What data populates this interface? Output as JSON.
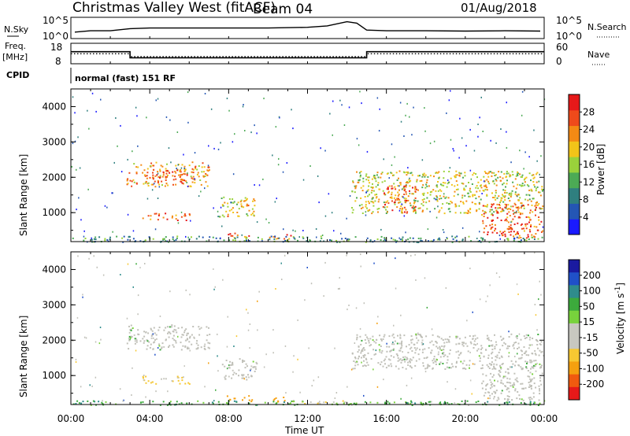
{
  "header": {
    "title": "Christmas Valley West (fitACF)",
    "beam": "Beam 04",
    "date": "01/Aug/2018"
  },
  "panels": {
    "nsky": {
      "label": "N.Sky",
      "tick_top": "10^5",
      "tick_bottom": "10^0",
      "right_label": "N.Search",
      "right_tick_top": "10^5",
      "right_tick_bottom": "10^0"
    },
    "freq": {
      "label_line1": "Freq.",
      "label_line2": "[MHz]",
      "tick_top": "18",
      "tick_bottom": "8",
      "right_label": "Nave",
      "right_tick_top": "60",
      "right_tick_bottom": "0"
    },
    "cpid": {
      "label": "CPID",
      "program": "normal (fast) 151 RF"
    }
  },
  "colors": {
    "power_scale": [
      "#1a1aff",
      "#2456b4",
      "#2f7f7f",
      "#4caa55",
      "#9ad23b",
      "#f2c419",
      "#f48a14",
      "#ef4a1b",
      "#e61919"
    ],
    "velocity_scale": [
      "#e61919",
      "#f05a0f",
      "#f5a00f",
      "#f7c832",
      "#c8c8c0",
      "#c8c8c0",
      "#78d23c",
      "#3caa3c",
      "#2f8c8c",
      "#2050c8",
      "#1a1aa0"
    ],
    "ground_scatter": "#c0c0b8"
  },
  "chart_data": {
    "type": "heatmap",
    "x_axis": {
      "label": "Time UT",
      "range_hours": [
        0,
        24
      ],
      "tick_labels": [
        "00:00",
        "04:00",
        "08:00",
        "12:00",
        "16:00",
        "20:00",
        "00:00"
      ]
    },
    "y_axis": {
      "label": "Slant Range [km]",
      "range_km": [
        180,
        4500
      ],
      "tick_labels": [
        "1000",
        "2000",
        "3000",
        "4000"
      ]
    },
    "nsky_series": {
      "x_hours": [
        0.2,
        1,
        2,
        3,
        4,
        6,
        8,
        10,
        12,
        13,
        14,
        14.5,
        15,
        16,
        18,
        20,
        22,
        23.8
      ],
      "log_counts": [
        1.4,
        1.8,
        1.8,
        2.4,
        2.6,
        2.6,
        2.6,
        2.6,
        2.8,
        3.2,
        4.4,
        4.0,
        2.0,
        1.8,
        1.8,
        1.7,
        1.8,
        1.7
      ]
    },
    "freq_series": {
      "x_hours": [
        0,
        3,
        3,
        15,
        15,
        24
      ],
      "freq_mhz": [
        14.5,
        14.5,
        11,
        11,
        14.5,
        14.5
      ]
    },
    "nave_series": {
      "x_hours": [
        0,
        3,
        3,
        15,
        15,
        24
      ],
      "nave": [
        32,
        32,
        22,
        22,
        32,
        32
      ]
    },
    "power": {
      "title": "Power [dB]",
      "colorbar_ticks": [
        "4",
        "8",
        "12",
        "16",
        "20",
        "24",
        "28"
      ],
      "regions": [
        {
          "t0": 2.8,
          "t1": 7.0,
          "r0": 1750,
          "r1": 2450,
          "level": 22
        },
        {
          "t0": 4.1,
          "t1": 5.9,
          "r0": 1850,
          "r1": 2250,
          "level": 27
        },
        {
          "t0": 3.6,
          "t1": 6.0,
          "r0": 800,
          "r1": 1000,
          "level": 24
        },
        {
          "t0": 7.5,
          "t1": 9.4,
          "r0": 900,
          "r1": 1500,
          "level": 19
        },
        {
          "t0": 7.9,
          "t1": 9.2,
          "r0": 300,
          "r1": 450,
          "level": 25
        },
        {
          "t0": 10.0,
          "t1": 11.2,
          "r0": 250,
          "r1": 400,
          "level": 24
        },
        {
          "t0": 14.2,
          "t1": 23.9,
          "r0": 1000,
          "r1": 2200,
          "level": 18
        },
        {
          "t0": 15.8,
          "t1": 17.5,
          "r0": 1000,
          "r1": 1800,
          "level": 25
        },
        {
          "t0": 20.8,
          "t1": 23.9,
          "r0": 300,
          "r1": 1300,
          "level": 26
        },
        {
          "t0": 0.0,
          "t1": 24.0,
          "r0": 180,
          "r1": 350,
          "level": 10
        }
      ]
    },
    "velocity": {
      "title": "Velocity [m s^-1]",
      "colorbar_ticks": [
        "200",
        "100",
        "50",
        "15",
        "-15",
        "-50",
        "-100",
        "-200"
      ],
      "regions": [
        {
          "t0": 2.8,
          "t1": 7.0,
          "r0": 1750,
          "r1": 2450,
          "velocity": 0,
          "ground": true
        },
        {
          "t0": 3.6,
          "t1": 6.0,
          "r0": 780,
          "r1": 1000,
          "velocity": -60
        },
        {
          "t0": 7.5,
          "t1": 9.4,
          "r0": 900,
          "r1": 1500,
          "velocity": 0,
          "ground": true
        },
        {
          "t0": 7.9,
          "t1": 9.2,
          "r0": 280,
          "r1": 450,
          "velocity": -150
        },
        {
          "t0": 10.2,
          "t1": 11.0,
          "r0": 250,
          "r1": 420,
          "velocity": -160
        },
        {
          "t0": 11.0,
          "t1": 14.0,
          "r0": 220,
          "r1": 320,
          "velocity": -40
        },
        {
          "t0": 14.2,
          "t1": 23.9,
          "r0": 1200,
          "r1": 2200,
          "velocity": 0,
          "ground": true
        },
        {
          "t0": 20.8,
          "t1": 23.9,
          "r0": 300,
          "r1": 1300,
          "velocity": 0,
          "ground": true
        },
        {
          "t0": 0.0,
          "t1": 24.0,
          "r0": 180,
          "r1": 300,
          "velocity": 30
        }
      ]
    }
  }
}
